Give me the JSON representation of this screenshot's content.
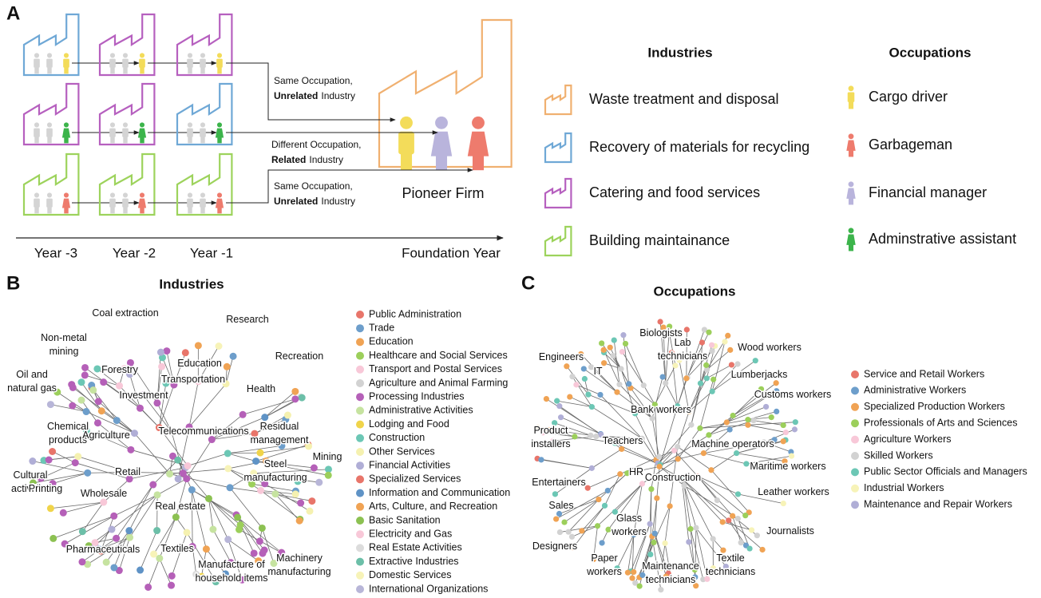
{
  "panel_a": {
    "letter": "A",
    "transitions": [
      {
        "line1": "Same Occupation,",
        "bold": "Unrelated",
        "rest": "Industry"
      },
      {
        "line1": "Different Occupation,",
        "bold": "Related",
        "rest": "Industry"
      },
      {
        "line1": "Same Occupation,",
        "bold": "Unrelated",
        "rest": "Industry"
      }
    ],
    "pioneer": "Pioneer Firm",
    "timeline": [
      "Year -3",
      "Year -2",
      "Year -1",
      "Foundation Year"
    ],
    "industries_legend": {
      "title": "Industries",
      "items": [
        {
          "label": "Waste treatment and disposal",
          "color": "#f0b070"
        },
        {
          "label": "Recovery of materials for recycling",
          "color": "#6fa8d6"
        },
        {
          "label": "Catering and food services",
          "color": "#b660bf"
        },
        {
          "label": "Building maintainance",
          "color": "#9dd35c"
        }
      ]
    },
    "occupations_legend": {
      "title": "Occupations",
      "items": [
        {
          "label": "Cargo driver",
          "color": "#f3dc5a"
        },
        {
          "label": "Garbageman",
          "color": "#ee7b6d"
        },
        {
          "label": "Financial manager",
          "color": "#b9b4dc"
        },
        {
          "label": "Adminstrative assistant",
          "color": "#3cb44b"
        }
      ]
    }
  },
  "panel_b": {
    "letter": "B",
    "title": "Industries",
    "labels": [
      [
        "Coal extraction"
      ],
      [
        "Research"
      ],
      [
        "Non-metal",
        "mining"
      ],
      [
        "Recreation"
      ],
      [
        "Education"
      ],
      [
        "Health"
      ],
      [
        "Forestry"
      ],
      [
        "Transportation"
      ],
      [
        "Oil and",
        "natural gas"
      ],
      [
        "Investment"
      ],
      [
        "Residual",
        "management"
      ],
      [
        "Chemical",
        "products"
      ],
      [
        "Agriculture"
      ],
      [
        "Telecommunications"
      ],
      [
        "Mining"
      ],
      [
        "Steel",
        "manufacturing"
      ],
      [
        "Cultural",
        "activities"
      ],
      [
        "Retail"
      ],
      [
        "Printing"
      ],
      [
        "Wholesale"
      ],
      [
        "Real estate"
      ],
      [
        "Textiles"
      ],
      [
        "Pharmaceuticals"
      ],
      [
        "Machinery",
        "manufacturing"
      ],
      [
        "Manufacture of",
        "household items"
      ]
    ],
    "legend": [
      {
        "label": "Public Administration",
        "color": "#e8756a"
      },
      {
        "label": "Trade",
        "color": "#6d9ecb"
      },
      {
        "label": "Education",
        "color": "#f0a354"
      },
      {
        "label": "Healthcare and Social Services",
        "color": "#9ccf5b"
      },
      {
        "label": "Transport and Postal Services",
        "color": "#f8c8d8"
      },
      {
        "label": "Agriculture and Animal Farming",
        "color": "#d2d2d2"
      },
      {
        "label": "Processing Industries",
        "color": "#b560b8"
      },
      {
        "label": "Administrative Activities",
        "color": "#c6e3a0"
      },
      {
        "label": "Lodging and Food",
        "color": "#f0d44a"
      },
      {
        "label": "Construction",
        "color": "#6cc7b5"
      },
      {
        "label": "Other Services",
        "color": "#f5f1b0"
      },
      {
        "label": "Financial Activities",
        "color": "#b0aed6"
      },
      {
        "label": "Specialized Services",
        "color": "#e8756a"
      },
      {
        "label": "Information and Communication",
        "color": "#5f93c6"
      },
      {
        "label": "Arts, Culture, and Recreation",
        "color": "#f0a354"
      },
      {
        "label": "Basic Sanitation",
        "color": "#8cc152"
      },
      {
        "label": "Electricity and Gas",
        "color": "#f8c8d8"
      },
      {
        "label": "Real Estate Activities",
        "color": "#dcdcdc"
      },
      {
        "label": "Extractive Industries",
        "color": "#6cbfa8"
      },
      {
        "label": "Domestic Services",
        "color": "#f7f3b8"
      },
      {
        "label": "International Organizations",
        "color": "#b8b6d8"
      }
    ]
  },
  "panel_c": {
    "letter": "C",
    "title": "Occupations",
    "labels": [
      [
        "Biologists"
      ],
      [
        "Lab",
        "technicians"
      ],
      [
        "Wood workers"
      ],
      [
        "Engineers"
      ],
      [
        "Lumberjacks"
      ],
      [
        "IT"
      ],
      [
        "Customs workers"
      ],
      [
        "Bank workers"
      ],
      [
        "Product",
        "installers"
      ],
      [
        "Teachers"
      ],
      [
        "Machine operators"
      ],
      [
        "Maritime workers"
      ],
      [
        "Entertainers"
      ],
      [
        "HR"
      ],
      [
        "Construction"
      ],
      [
        "Leather workers"
      ],
      [
        "Sales"
      ],
      [
        "Glass",
        "workers"
      ],
      [
        "Journalists"
      ],
      [
        "Designers"
      ],
      [
        "Paper",
        "workers"
      ],
      [
        "Maintenance",
        "technicians"
      ],
      [
        "Textile",
        "technicians"
      ]
    ],
    "legend": [
      {
        "label": "Service and Retail Workers",
        "color": "#e8756a"
      },
      {
        "label": "Administrative Workers",
        "color": "#6d9ecb"
      },
      {
        "label": "Specialized Production Workers",
        "color": "#f0a354"
      },
      {
        "label": "Professionals of Arts and Sciences",
        "color": "#9ccf5b"
      },
      {
        "label": "Agriculture Workers",
        "color": "#f8c8d8"
      },
      {
        "label": "Skilled Workers",
        "color": "#d2d2d2"
      },
      {
        "label": "Public Sector Officials and Managers",
        "color": "#6cc7b5"
      },
      {
        "label": "Industrial Workers",
        "color": "#f7f3b8"
      },
      {
        "label": "Maintenance and Repair Workers",
        "color": "#b0aed6"
      }
    ]
  }
}
